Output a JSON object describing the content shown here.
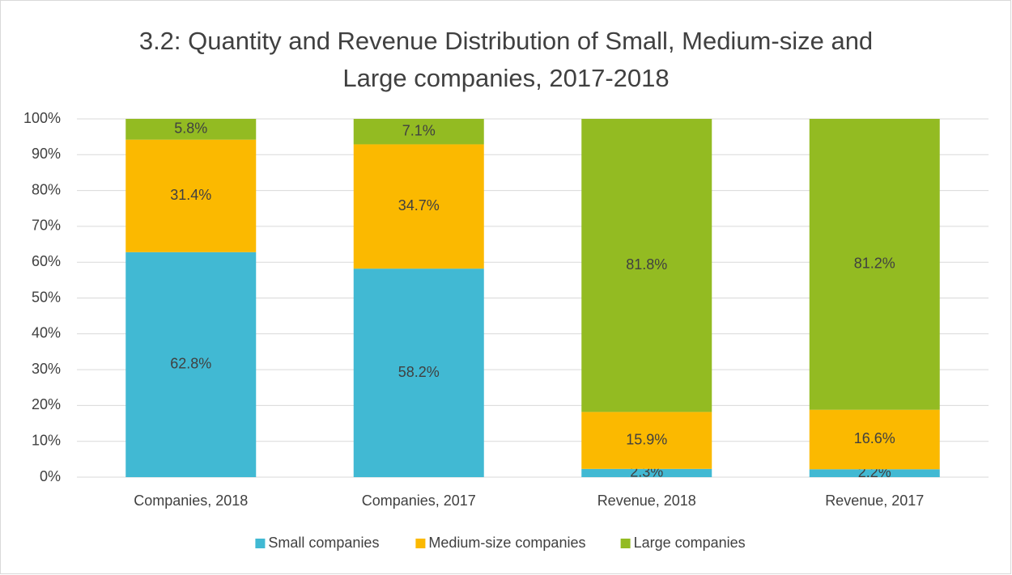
{
  "chart_data": {
    "type": "stacked_bar",
    "title": "3.2: Quantity and Revenue Distribution of Small, Medium-size and Large companies, 2017-2018",
    "categories": [
      "Companies, 2018",
      "Companies, 2017",
      "Revenue,  2018",
      "Revenue, 2017"
    ],
    "series": [
      {
        "name": "Small companies",
        "color": "#41b9d3",
        "values": [
          62.8,
          58.2,
          2.3,
          2.2
        ],
        "value_labels": [
          "62.8%",
          "58.2%",
          "2.3%",
          "2.2%"
        ]
      },
      {
        "name": "Medium-size companies",
        "color": "#fbb900",
        "values": [
          31.4,
          34.7,
          15.9,
          16.6
        ],
        "value_labels": [
          "31.4%",
          "34.7%",
          "15.9%",
          "16.6%"
        ]
      },
      {
        "name": "Large companies",
        "color": "#93bb22",
        "values": [
          5.8,
          7.1,
          81.8,
          81.2
        ],
        "value_labels": [
          "5.8%",
          "7.1%",
          "81.8%",
          "81.2%"
        ]
      }
    ],
    "ylim": [
      0,
      100
    ],
    "yticks": [
      {
        "value": 0,
        "label": "0%"
      },
      {
        "value": 10,
        "label": "10%"
      },
      {
        "value": 20,
        "label": "20%"
      },
      {
        "value": 30,
        "label": "30%"
      },
      {
        "value": 40,
        "label": "40%"
      },
      {
        "value": 50,
        "label": "50%"
      },
      {
        "value": 60,
        "label": "60%"
      },
      {
        "value": 70,
        "label": "70%"
      },
      {
        "value": 80,
        "label": "80%"
      },
      {
        "value": 90,
        "label": "90%"
      },
      {
        "value": 100,
        "label": "100%"
      }
    ],
    "grid": true,
    "legend": "bottom"
  }
}
